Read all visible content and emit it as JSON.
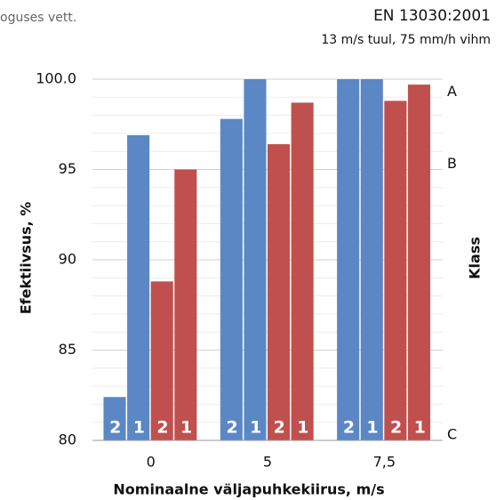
{
  "chart_data": {
    "type": "bar",
    "header_left": "oguses vett.",
    "title": "EN 13030:2001",
    "subtitle": "13 m/s tuul, 75 mm/h vihm",
    "x_label": "Nominaalne väljapuhkekiirus, m/s",
    "y_label": "Efektiivsus,  %",
    "y2_label": "Klass",
    "categories": [
      "0",
      "5",
      "7,5"
    ],
    "series": [
      {
        "name": "2",
        "color": "#5b87c5",
        "values": [
          82.4,
          97.8,
          100
        ]
      },
      {
        "name": "1",
        "color": "#5b87c5",
        "values": [
          96.9,
          100,
          100
        ]
      },
      {
        "name": "2",
        "color": "#c0504d",
        "values": [
          88.8,
          96.4,
          98.8
        ]
      },
      {
        "name": "1",
        "color": "#c0504d",
        "values": [
          95.0,
          98.7,
          99.7
        ]
      }
    ],
    "ylim": [
      80,
      100
    ],
    "yticks": [
      80,
      85,
      90,
      95,
      {
        "value": 100,
        "label": "100.0"
      }
    ],
    "yminorticks": [
      81,
      82,
      83,
      84,
      86,
      87,
      88,
      89,
      91,
      92,
      93,
      94,
      96,
      97,
      98,
      99
    ],
    "y2lim": [
      80,
      100
    ],
    "y2ticks": [
      {
        "value": 99,
        "label": "A"
      },
      {
        "value": 95,
        "label": "B"
      },
      {
        "value": 80,
        "label": "C"
      }
    ],
    "grid": true
  }
}
